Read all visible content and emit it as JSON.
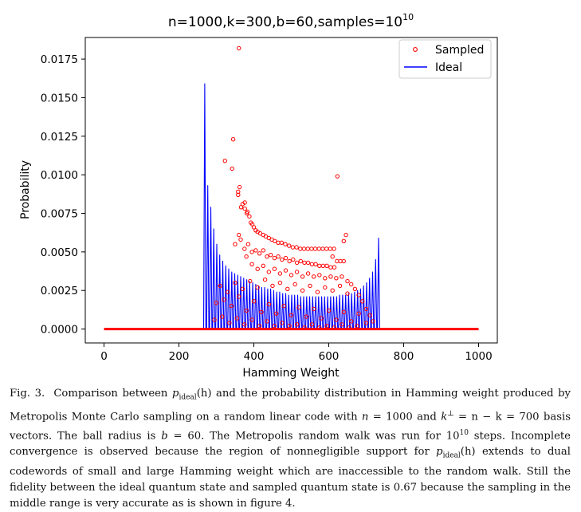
{
  "chart_data": {
    "type": "scatter+line",
    "title": "n=1000,k=300,b=60,samples=10",
    "title_superscript": "10",
    "xlabel": "Hamming Weight",
    "ylabel": "Probability",
    "xlim": [
      -50,
      1050
    ],
    "ylim": [
      -0.0009,
      0.0189
    ],
    "xticks": [
      0,
      200,
      400,
      600,
      800,
      1000
    ],
    "yticks": [
      0.0,
      0.0025,
      0.005,
      0.0075,
      0.01,
      0.0125,
      0.015,
      0.0175
    ],
    "ytick_labels": [
      "0.0000",
      "0.0025",
      "0.0050",
      "0.0075",
      "0.0100",
      "0.0125",
      "0.0150",
      "0.0175"
    ],
    "legend": {
      "position": "top-right",
      "entries": [
        {
          "label": "Sampled",
          "marker": "open-circle",
          "color": "#ff0000"
        },
        {
          "label": "Ideal",
          "marker": "line",
          "color": "#0000ff"
        }
      ]
    },
    "series": [
      {
        "name": "Ideal",
        "kind": "line",
        "color": "#0000ff",
        "peaks": [
          [
            269,
            0.0159
          ],
          [
            277,
            0.0093
          ],
          [
            285,
            0.0079
          ],
          [
            293,
            0.0065
          ],
          [
            301,
            0.0055
          ],
          [
            309,
            0.0048
          ],
          [
            317,
            0.0044
          ],
          [
            325,
            0.0041
          ],
          [
            333,
            0.0039
          ],
          [
            341,
            0.0037
          ],
          [
            349,
            0.0036
          ],
          [
            357,
            0.0035
          ],
          [
            365,
            0.0034
          ],
          [
            373,
            0.0033
          ],
          [
            381,
            0.0032
          ],
          [
            389,
            0.0031
          ],
          [
            397,
            0.003
          ],
          [
            405,
            0.0029
          ],
          [
            413,
            0.0028
          ],
          [
            421,
            0.0027
          ],
          [
            429,
            0.0027
          ],
          [
            437,
            0.0026
          ],
          [
            445,
            0.0026
          ],
          [
            453,
            0.0025
          ],
          [
            461,
            0.0024
          ],
          [
            469,
            0.0024
          ],
          [
            477,
            0.0023
          ],
          [
            485,
            0.0023
          ],
          [
            493,
            0.0022
          ],
          [
            501,
            0.0022
          ],
          [
            509,
            0.0022
          ],
          [
            517,
            0.0022
          ],
          [
            525,
            0.0021
          ],
          [
            533,
            0.0021
          ],
          [
            541,
            0.0021
          ],
          [
            549,
            0.0021
          ],
          [
            557,
            0.0021
          ],
          [
            565,
            0.0021
          ],
          [
            573,
            0.0021
          ],
          [
            581,
            0.0021
          ],
          [
            589,
            0.0021
          ],
          [
            597,
            0.0021
          ],
          [
            605,
            0.0021
          ],
          [
            613,
            0.0021
          ],
          [
            621,
            0.0021
          ],
          [
            629,
            0.0022
          ],
          [
            637,
            0.0022
          ],
          [
            645,
            0.0022
          ],
          [
            653,
            0.0023
          ],
          [
            661,
            0.0023
          ],
          [
            669,
            0.0024
          ],
          [
            677,
            0.0025
          ],
          [
            685,
            0.0026
          ],
          [
            693,
            0.0028
          ],
          [
            701,
            0.003
          ],
          [
            709,
            0.0033
          ],
          [
            717,
            0.0037
          ],
          [
            725,
            0.0045
          ],
          [
            733,
            0.0059
          ]
        ]
      },
      {
        "name": "Sampled",
        "kind": "scatter",
        "color": "#ff0000",
        "points": [
          [
            360,
            0.0182
          ],
          [
            345,
            0.0123
          ],
          [
            323,
            0.0109
          ],
          [
            342,
            0.0104
          ],
          [
            623,
            0.0099
          ],
          [
            362,
            0.0092
          ],
          [
            358,
            0.0089
          ],
          [
            358,
            0.0087
          ],
          [
            376,
            0.0082
          ],
          [
            370,
            0.0081
          ],
          [
            366,
            0.0079
          ],
          [
            376,
            0.0078
          ],
          [
            383,
            0.0076
          ],
          [
            381,
            0.0075
          ],
          [
            388,
            0.0073
          ],
          [
            392,
            0.0069
          ],
          [
            396,
            0.0068
          ],
          [
            400,
            0.0066
          ],
          [
            405,
            0.0064
          ],
          [
            410,
            0.0063
          ],
          [
            417,
            0.0062
          ],
          [
            425,
            0.0061
          ],
          [
            432,
            0.006
          ],
          [
            440,
            0.0059
          ],
          [
            448,
            0.0058
          ],
          [
            456,
            0.0057
          ],
          [
            465,
            0.0056
          ],
          [
            474,
            0.0056
          ],
          [
            484,
            0.0055
          ],
          [
            494,
            0.0054
          ],
          [
            504,
            0.0053
          ],
          [
            514,
            0.0053
          ],
          [
            524,
            0.0052
          ],
          [
            534,
            0.0052
          ],
          [
            544,
            0.0052
          ],
          [
            554,
            0.0052
          ],
          [
            564,
            0.0052
          ],
          [
            574,
            0.0052
          ],
          [
            584,
            0.0052
          ],
          [
            594,
            0.0052
          ],
          [
            604,
            0.0052
          ],
          [
            614,
            0.0052
          ],
          [
            646,
            0.0061
          ],
          [
            640,
            0.0057
          ],
          [
            622,
            0.0044
          ],
          [
            631,
            0.0044
          ],
          [
            640,
            0.0044
          ],
          [
            610,
            0.0047
          ],
          [
            350,
            0.0055
          ],
          [
            360,
            0.0061
          ],
          [
            365,
            0.0058
          ],
          [
            375,
            0.0052
          ],
          [
            385,
            0.0055
          ],
          [
            395,
            0.005
          ],
          [
            405,
            0.0051
          ],
          [
            415,
            0.0049
          ],
          [
            425,
            0.0051
          ],
          [
            435,
            0.0047
          ],
          [
            445,
            0.0048
          ],
          [
            455,
            0.0046
          ],
          [
            465,
            0.0047
          ],
          [
            475,
            0.0045
          ],
          [
            485,
            0.0046
          ],
          [
            495,
            0.0044
          ],
          [
            505,
            0.0045
          ],
          [
            515,
            0.0043
          ],
          [
            525,
            0.0044
          ],
          [
            535,
            0.0043
          ],
          [
            545,
            0.0043
          ],
          [
            555,
            0.0042
          ],
          [
            565,
            0.0042
          ],
          [
            575,
            0.0041
          ],
          [
            585,
            0.0041
          ],
          [
            595,
            0.0041
          ],
          [
            605,
            0.004
          ],
          [
            615,
            0.004
          ],
          [
            380,
            0.0047
          ],
          [
            395,
            0.0042
          ],
          [
            410,
            0.0039
          ],
          [
            425,
            0.0041
          ],
          [
            440,
            0.0037
          ],
          [
            455,
            0.0039
          ],
          [
            470,
            0.0036
          ],
          [
            485,
            0.0038
          ],
          [
            500,
            0.0035
          ],
          [
            515,
            0.0037
          ],
          [
            530,
            0.0034
          ],
          [
            545,
            0.0036
          ],
          [
            560,
            0.0034
          ],
          [
            575,
            0.0035
          ],
          [
            590,
            0.0033
          ],
          [
            605,
            0.0034
          ],
          [
            620,
            0.0033
          ],
          [
            635,
            0.0034
          ],
          [
            650,
            0.0031
          ],
          [
            660,
            0.0029
          ],
          [
            670,
            0.0026
          ],
          [
            680,
            0.0022
          ],
          [
            690,
            0.0018
          ],
          [
            700,
            0.0013
          ],
          [
            710,
            0.0009
          ],
          [
            718,
            0.0005
          ],
          [
            300,
            0.0017
          ],
          [
            320,
            0.0019
          ],
          [
            340,
            0.0015
          ],
          [
            360,
            0.0021
          ],
          [
            380,
            0.0012
          ],
          [
            400,
            0.0018
          ],
          [
            420,
            0.0011
          ],
          [
            440,
            0.0016
          ],
          [
            460,
            0.001
          ],
          [
            480,
            0.0015
          ],
          [
            500,
            0.0009
          ],
          [
            520,
            0.0014
          ],
          [
            540,
            0.0008
          ],
          [
            560,
            0.0013
          ],
          [
            580,
            0.0007
          ],
          [
            600,
            0.0012
          ],
          [
            620,
            0.0006
          ],
          [
            640,
            0.0011
          ],
          [
            660,
            0.0005
          ],
          [
            680,
            0.001
          ],
          [
            700,
            0.0004
          ],
          [
            310,
            0.0028
          ],
          [
            330,
            0.0024
          ],
          [
            350,
            0.003
          ],
          [
            370,
            0.0026
          ],
          [
            390,
            0.0031
          ],
          [
            410,
            0.0027
          ],
          [
            430,
            0.0032
          ],
          [
            450,
            0.0028
          ],
          [
            470,
            0.003
          ],
          [
            490,
            0.0026
          ],
          [
            510,
            0.0029
          ],
          [
            530,
            0.0025
          ],
          [
            550,
            0.0028
          ],
          [
            570,
            0.0024
          ],
          [
            590,
            0.0027
          ],
          [
            610,
            0.0025
          ],
          [
            630,
            0.0028
          ],
          [
            650,
            0.0023
          ],
          [
            295,
            0.0006
          ],
          [
            315,
            0.0008
          ],
          [
            335,
            0.0004
          ],
          [
            355,
            0.0007
          ],
          [
            375,
            0.0003
          ],
          [
            395,
            0.0006
          ],
          [
            415,
            0.0002
          ],
          [
            435,
            0.0005
          ],
          [
            455,
            0.0002
          ],
          [
            475,
            0.0004
          ],
          [
            495,
            0.0002
          ],
          [
            515,
            0.0003
          ],
          [
            535,
            0.0001
          ],
          [
            555,
            0.0003
          ],
          [
            575,
            0.0001
          ],
          [
            595,
            0.0002
          ],
          [
            615,
            0.0001
          ],
          [
            635,
            0.0003
          ],
          [
            655,
            0.0001
          ],
          [
            675,
            0.0002
          ]
        ]
      }
    ]
  },
  "caption": {
    "fig_label": "Fig. 3.",
    "parts": [
      "Comparison between ",
      "p",
      "ideal",
      "(h) and the probability distribution in Hamming weight produced by Metropolis Monte Carlo sampling on a random linear code with ",
      "n",
      " = 1000 and ",
      "k",
      "⊥",
      " = n − k = 700 basis vectors. The ball radius is ",
      "b",
      " = 60. The Metropolis random walk was run for 10",
      "10",
      " steps. Incomplete convergence is observed because the region of nonnegligible support for ",
      "p",
      "ideal",
      "(h) extends to dual codewords of small and large Hamming weight which are inaccessible to the random walk. Still the fidelity between the ideal quantum state and sampled quantum state is 0.67 because the sampling in the middle range is very accurate as is shown in figure 4."
    ]
  }
}
